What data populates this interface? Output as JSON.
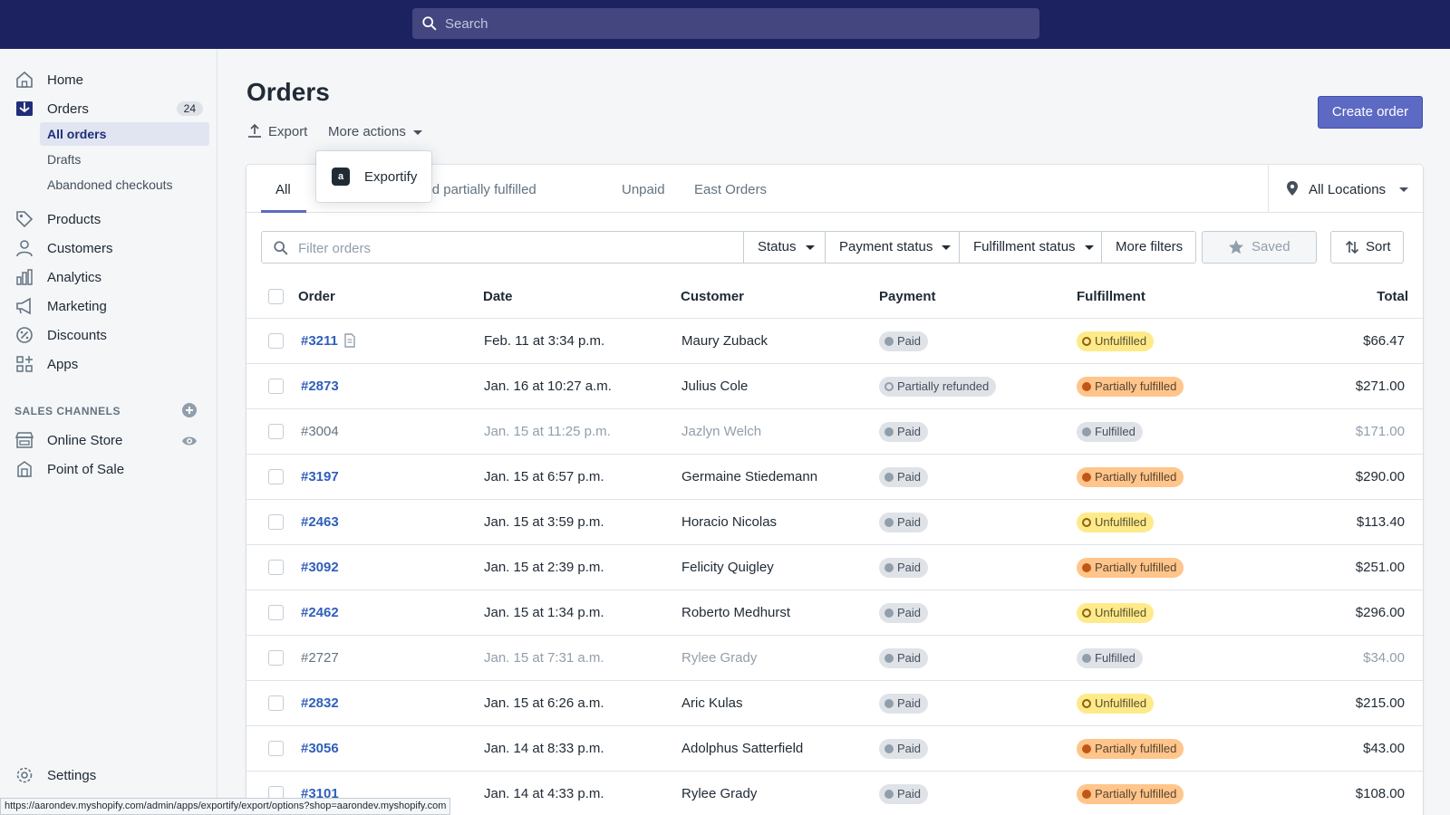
{
  "search": {
    "placeholder": "Search"
  },
  "sidebar": {
    "items": [
      {
        "label": "Home"
      },
      {
        "label": "Orders",
        "badge": "24"
      },
      {
        "label": "Products"
      },
      {
        "label": "Customers"
      },
      {
        "label": "Analytics"
      },
      {
        "label": "Marketing"
      },
      {
        "label": "Discounts"
      },
      {
        "label": "Apps"
      }
    ],
    "order_subitems": [
      {
        "label": "All orders"
      },
      {
        "label": "Drafts"
      },
      {
        "label": "Abandoned checkouts"
      }
    ],
    "sales_channels_heading": "SALES CHANNELS",
    "channels": [
      {
        "label": "Online Store"
      },
      {
        "label": "Point of Sale"
      }
    ],
    "settings_label": "Settings"
  },
  "status_url": "https://aarondev.myshopify.com/admin/apps/exportify/export/options?shop=aarondev.myshopify.com",
  "page": {
    "title": "Orders",
    "export_label": "Export",
    "more_actions_label": "More actions",
    "create_order_label": "Create order"
  },
  "dropdown": {
    "app_icon_letter": "a",
    "item_label": "Exportify"
  },
  "tabs": [
    {
      "label": "All"
    },
    {
      "label": "Unfulfilled and partially fulfilled"
    },
    {
      "label": "Unpaid"
    },
    {
      "label": "East Orders"
    }
  ],
  "location": {
    "label": "All Locations"
  },
  "filters": {
    "placeholder": "Filter orders",
    "status_label": "Status",
    "payment_status_label": "Payment status",
    "fulfillment_status_label": "Fulfillment status",
    "more_filters_label": "More filters",
    "saved_label": "Saved",
    "sort_label": "Sort"
  },
  "table": {
    "headers": {
      "order": "Order",
      "date": "Date",
      "customer": "Customer",
      "payment": "Payment",
      "fulfillment": "Fulfillment",
      "total": "Total"
    },
    "rows": [
      {
        "order": "#3211",
        "date": "Feb. 11 at 3:34 p.m.",
        "customer": "Maury Zuback",
        "payment": "Paid",
        "fulfillment": "Unfulfilled",
        "total": "$66.47"
      },
      {
        "order": "#2873",
        "date": "Jan. 16 at 10:27 a.m.",
        "customer": "Julius Cole",
        "payment": "Partially refunded",
        "fulfillment": "Partially fulfilled",
        "total": "$271.00"
      },
      {
        "order": "#3004",
        "date": "Jan. 15 at 11:25 p.m.",
        "customer": "Jazlyn Welch",
        "payment": "Paid",
        "fulfillment": "Fulfilled",
        "total": "$171.00"
      },
      {
        "order": "#3197",
        "date": "Jan. 15 at 6:57 p.m.",
        "customer": "Germaine Stiedemann",
        "payment": "Paid",
        "fulfillment": "Partially fulfilled",
        "total": "$290.00"
      },
      {
        "order": "#2463",
        "date": "Jan. 15 at 3:59 p.m.",
        "customer": "Horacio Nicolas",
        "payment": "Paid",
        "fulfillment": "Unfulfilled",
        "total": "$113.40"
      },
      {
        "order": "#3092",
        "date": "Jan. 15 at 2:39 p.m.",
        "customer": "Felicity Quigley",
        "payment": "Paid",
        "fulfillment": "Partially fulfilled",
        "total": "$251.00"
      },
      {
        "order": "#2462",
        "date": "Jan. 15 at 1:34 p.m.",
        "customer": "Roberto Medhurst",
        "payment": "Paid",
        "fulfillment": "Unfulfilled",
        "total": "$296.00"
      },
      {
        "order": "#2727",
        "date": "Jan. 15 at 7:31 a.m.",
        "customer": "Rylee Grady",
        "payment": "Paid",
        "fulfillment": "Fulfilled",
        "total": "$34.00"
      },
      {
        "order": "#2832",
        "date": "Jan. 15 at 6:26 a.m.",
        "customer": "Aric Kulas",
        "payment": "Paid",
        "fulfillment": "Unfulfilled",
        "total": "$215.00"
      },
      {
        "order": "#3056",
        "date": "Jan. 14 at 8:33 p.m.",
        "customer": "Adolphus Satterfield",
        "payment": "Paid",
        "fulfillment": "Partially fulfilled",
        "total": "$43.00"
      },
      {
        "order": "#3101",
        "date": "Jan. 14 at 4:33 p.m.",
        "customer": "Rylee Grady",
        "payment": "Paid",
        "fulfillment": "Partially fulfilled",
        "total": "$108.00"
      }
    ]
  },
  "colors": {
    "topbar": "#1c2260",
    "accent": "#5c6ac4",
    "link": "#2f5fbb",
    "unfulfilled_badge": "#ffea8a",
    "partial_badge": "#ffc58b",
    "neutral_badge": "#dfe3e8"
  }
}
